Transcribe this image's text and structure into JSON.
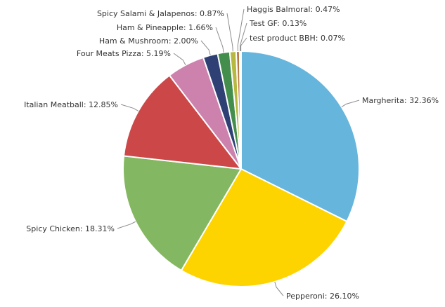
{
  "chart_data": {
    "type": "pie",
    "title": "",
    "slices": [
      {
        "label": "Margherita",
        "value": 32.36,
        "display": "32.36%",
        "color": "#66b5dc"
      },
      {
        "label": "Pepperoni",
        "value": 26.1,
        "display": "26.10%",
        "color": "#fdd400"
      },
      {
        "label": "Spicy Chicken",
        "value": 18.31,
        "display": "18.31%",
        "color": "#84b761"
      },
      {
        "label": "Italian Meatball",
        "value": 12.85,
        "display": "12.85%",
        "color": "#cc4748"
      },
      {
        "label": "Four Meats Pizza",
        "value": 5.19,
        "display": "5.19%",
        "color": "#cd82ad"
      },
      {
        "label": "Ham & Mushroom",
        "value": 2.0,
        "display": "2.00%",
        "color": "#2f4074"
      },
      {
        "label": "Ham & Pineapple",
        "value": 1.66,
        "display": "1.66%",
        "color": "#448e4d"
      },
      {
        "label": "Spicy Salami & Jalapenos",
        "value": 0.87,
        "display": "0.87%",
        "color": "#b7b83f"
      },
      {
        "label": "Haggis Balmoral",
        "value": 0.47,
        "display": "0.47%",
        "color": "#b9783f"
      },
      {
        "label": "Test GF",
        "value": 0.13,
        "display": "0.13%",
        "color": "#b93e3d"
      },
      {
        "label": "test product BBH",
        "value": 0.07,
        "display": "0.07%",
        "color": "#913167"
      }
    ]
  }
}
